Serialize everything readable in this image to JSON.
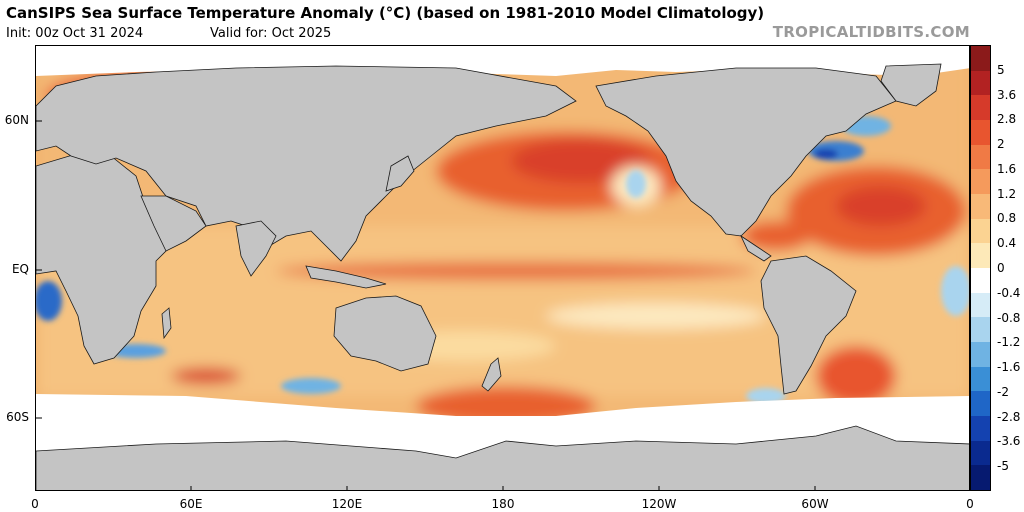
{
  "header": {
    "title": "CanSIPS Sea Surface Temperature Anomaly (°C) (based on 1981-2010 Model Climatology)",
    "init": "Init: 00z Oct 31 2024",
    "valid": "Valid for: Oct 2025",
    "watermark": "TROPICALTIDBITS.COM"
  },
  "map": {
    "lat_labels": [
      "60N",
      "EQ",
      "60S"
    ],
    "lon_labels": [
      "0",
      "60E",
      "120E",
      "180",
      "120W",
      "60W",
      "0"
    ],
    "land_color": "#c4c4c4",
    "ice_color": "#ffffff",
    "ocean_base_color": "#f0b06a"
  },
  "colorbar": {
    "labels": [
      "5",
      "3.6",
      "2.8",
      "2",
      "1.6",
      "1.2",
      "0.8",
      "0.4",
      "0",
      "-0.4",
      "-0.8",
      "-1.2",
      "-1.6",
      "-2",
      "-2.8",
      "-3.6",
      "-5"
    ],
    "colors": [
      "#8b1a1a",
      "#b22222",
      "#d63a2a",
      "#e8552f",
      "#f07a45",
      "#f59a5c",
      "#f8b978",
      "#fbd392",
      "#fde9b8",
      "#ffffff",
      "#d6ecf7",
      "#a9d4ee",
      "#6fb3e3",
      "#3a8fd6",
      "#1f66c7",
      "#1442b0",
      "#0a2a8f",
      "#061a70"
    ]
  }
}
